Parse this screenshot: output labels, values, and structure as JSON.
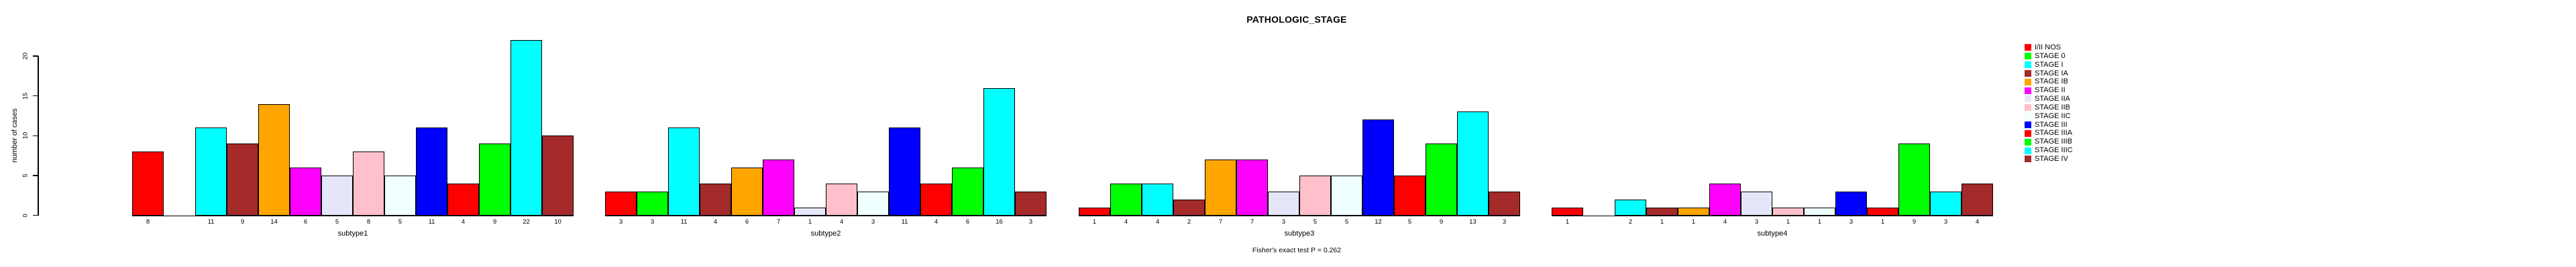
{
  "title": "PATHOLOGIC_STAGE",
  "y_axis": {
    "label": "number of cases",
    "ticks": [
      "0",
      "5",
      "10",
      "15",
      "20"
    ]
  },
  "footer_annotation": "Fisher's exact test P = 0.262",
  "chart_data": {
    "type": "bar",
    "title": "PATHOLOGIC_STAGE",
    "xlabel": "",
    "ylabel": "number of cases",
    "ylim": [
      0,
      20
    ],
    "yticks": [
      0,
      5,
      10,
      15,
      20
    ],
    "grid": false,
    "legend_position": "right",
    "bar_value_labels_shown": true,
    "zero_bars_unlabeled": true,
    "categories": [
      "I/II NOS",
      "STAGE 0",
      "STAGE I",
      "STAGE IA",
      "STAGE IB",
      "STAGE II",
      "STAGE IIA",
      "STAGE IIB",
      "STAGE IIC",
      "STAGE III",
      "STAGE IIIA",
      "STAGE IIIB",
      "STAGE IIIC",
      "STAGE IV"
    ],
    "colors": [
      "#FF0000",
      "#00FF00",
      "#00FFFF",
      "#A52A2A",
      "#FFA500",
      "#FF00FF",
      "#E6E6FA",
      "#FFC0CB",
      "#F0FFFF",
      "#0000FF",
      "#FF0000",
      "#00FF00",
      "#00FFFF",
      "#A52A2A"
    ],
    "groups": [
      {
        "label": "subtype1",
        "values": [
          8,
          0,
          11,
          9,
          14,
          6,
          5,
          8,
          5,
          11,
          4,
          9,
          22,
          10
        ]
      },
      {
        "label": "subtype2",
        "values": [
          3,
          3,
          11,
          4,
          6,
          7,
          1,
          4,
          3,
          11,
          4,
          6,
          16,
          3
        ]
      },
      {
        "label": "subtype3",
        "values": [
          1,
          4,
          4,
          2,
          7,
          7,
          3,
          5,
          5,
          12,
          5,
          9,
          13,
          3
        ]
      },
      {
        "label": "subtype4",
        "values": [
          1,
          0,
          2,
          1,
          1,
          4,
          3,
          1,
          1,
          3,
          1,
          9,
          3,
          4
        ]
      }
    ],
    "annotation": "Fisher's exact test P = 0.262"
  }
}
